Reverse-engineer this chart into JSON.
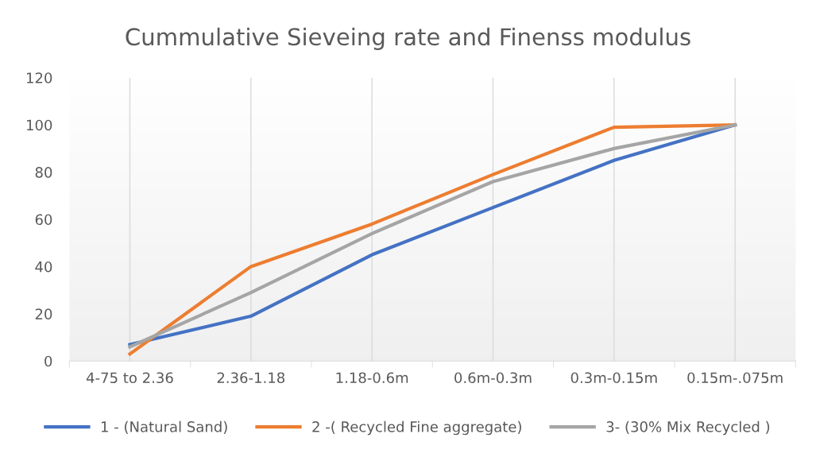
{
  "chart_data": {
    "type": "line",
    "title": "Cummulative Sieveing rate and Finenss modulus",
    "categories": [
      "4-75 to 2.36",
      "2.36-1.18",
      "1.18-0.6m",
      "0.6m-0.3m",
      "0.3m-0.15m",
      "0.15m-.075m"
    ],
    "series": [
      {
        "name": "1 - (Natural Sand)",
        "color": "#4472c4",
        "values": [
          7,
          19,
          45,
          65,
          85,
          100
        ]
      },
      {
        "name": "2 -( Recycled Fine aggregate)",
        "color": "#ed7d31",
        "values": [
          3,
          40,
          58,
          79,
          99,
          100
        ]
      },
      {
        "name": "3- (30% Mix Recycled )",
        "color": "#a5a5a5",
        "values": [
          6,
          29,
          54,
          76,
          90,
          100
        ]
      }
    ],
    "ylim": [
      0,
      120
    ],
    "yticks": [
      0,
      20,
      40,
      60,
      80,
      100,
      120
    ],
    "grid": "x",
    "legend": "bottom",
    "marker": "none",
    "line_style": "solid"
  }
}
